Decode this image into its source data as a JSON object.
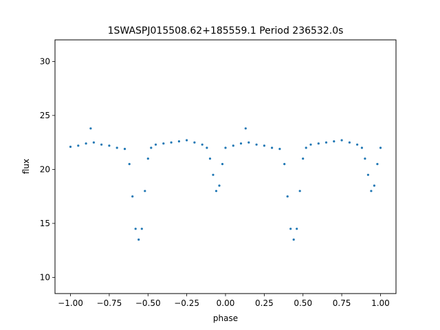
{
  "chart_data": {
    "type": "scatter",
    "title": "1SWASPJ015508.62+185559.1 Period 236532.0s",
    "xlabel": "phase",
    "ylabel": "flux",
    "xlim": [
      -1.1,
      1.1
    ],
    "ylim": [
      8.5,
      32.0
    ],
    "x_ticks": [
      -1.0,
      -0.75,
      -0.5,
      -0.25,
      0.0,
      0.25,
      0.5,
      0.75,
      1.0
    ],
    "x_tick_labels": [
      "−1.00",
      "−0.75",
      "−0.50",
      "−0.25",
      "0.00",
      "0.25",
      "0.50",
      "0.75",
      "1.00"
    ],
    "y_ticks": [
      10,
      15,
      20,
      25,
      30
    ],
    "y_tick_labels": [
      "10",
      "15",
      "20",
      "25",
      "30"
    ],
    "grid": false,
    "marker_color": "#1f77b4",
    "series": [
      {
        "x": [
          -1.0,
          -0.95,
          -0.9,
          -0.87,
          -0.85,
          -0.8,
          -0.75,
          -0.7,
          -0.65,
          -0.62,
          -0.6,
          -0.58,
          -0.56,
          -0.54,
          -0.52,
          -0.5,
          -0.48,
          -0.45,
          -0.4,
          -0.35,
          -0.3,
          -0.25,
          -0.2,
          -0.15,
          -0.12,
          -0.1,
          -0.08,
          -0.06,
          -0.04,
          -0.02,
          0.0,
          0.05,
          0.1,
          0.13,
          0.15,
          0.2,
          0.25,
          0.3,
          0.35,
          0.38,
          0.4,
          0.42,
          0.44,
          0.46,
          0.48,
          0.5,
          0.52,
          0.55,
          0.6,
          0.65,
          0.7,
          0.75,
          0.8,
          0.85,
          0.88,
          0.9,
          0.92,
          0.94,
          0.96,
          0.98,
          1.0
        ],
        "y": [
          22.1,
          22.2,
          22.4,
          23.8,
          22.5,
          22.3,
          22.2,
          22.0,
          21.9,
          20.5,
          17.5,
          14.5,
          13.5,
          14.5,
          18.0,
          21.0,
          22.0,
          22.3,
          22.4,
          22.5,
          22.6,
          22.7,
          22.5,
          22.3,
          22.0,
          21.0,
          19.5,
          18.0,
          18.5,
          20.5,
          22.0,
          22.2,
          22.4,
          23.8,
          22.5,
          22.3,
          22.2,
          22.0,
          21.9,
          20.5,
          17.5,
          14.5,
          13.5,
          14.5,
          18.0,
          21.0,
          22.0,
          22.3,
          22.4,
          22.5,
          22.6,
          22.7,
          22.5,
          22.3,
          22.0,
          21.0,
          19.5,
          18.0,
          18.5,
          20.5,
          22.0
        ]
      }
    ]
  }
}
